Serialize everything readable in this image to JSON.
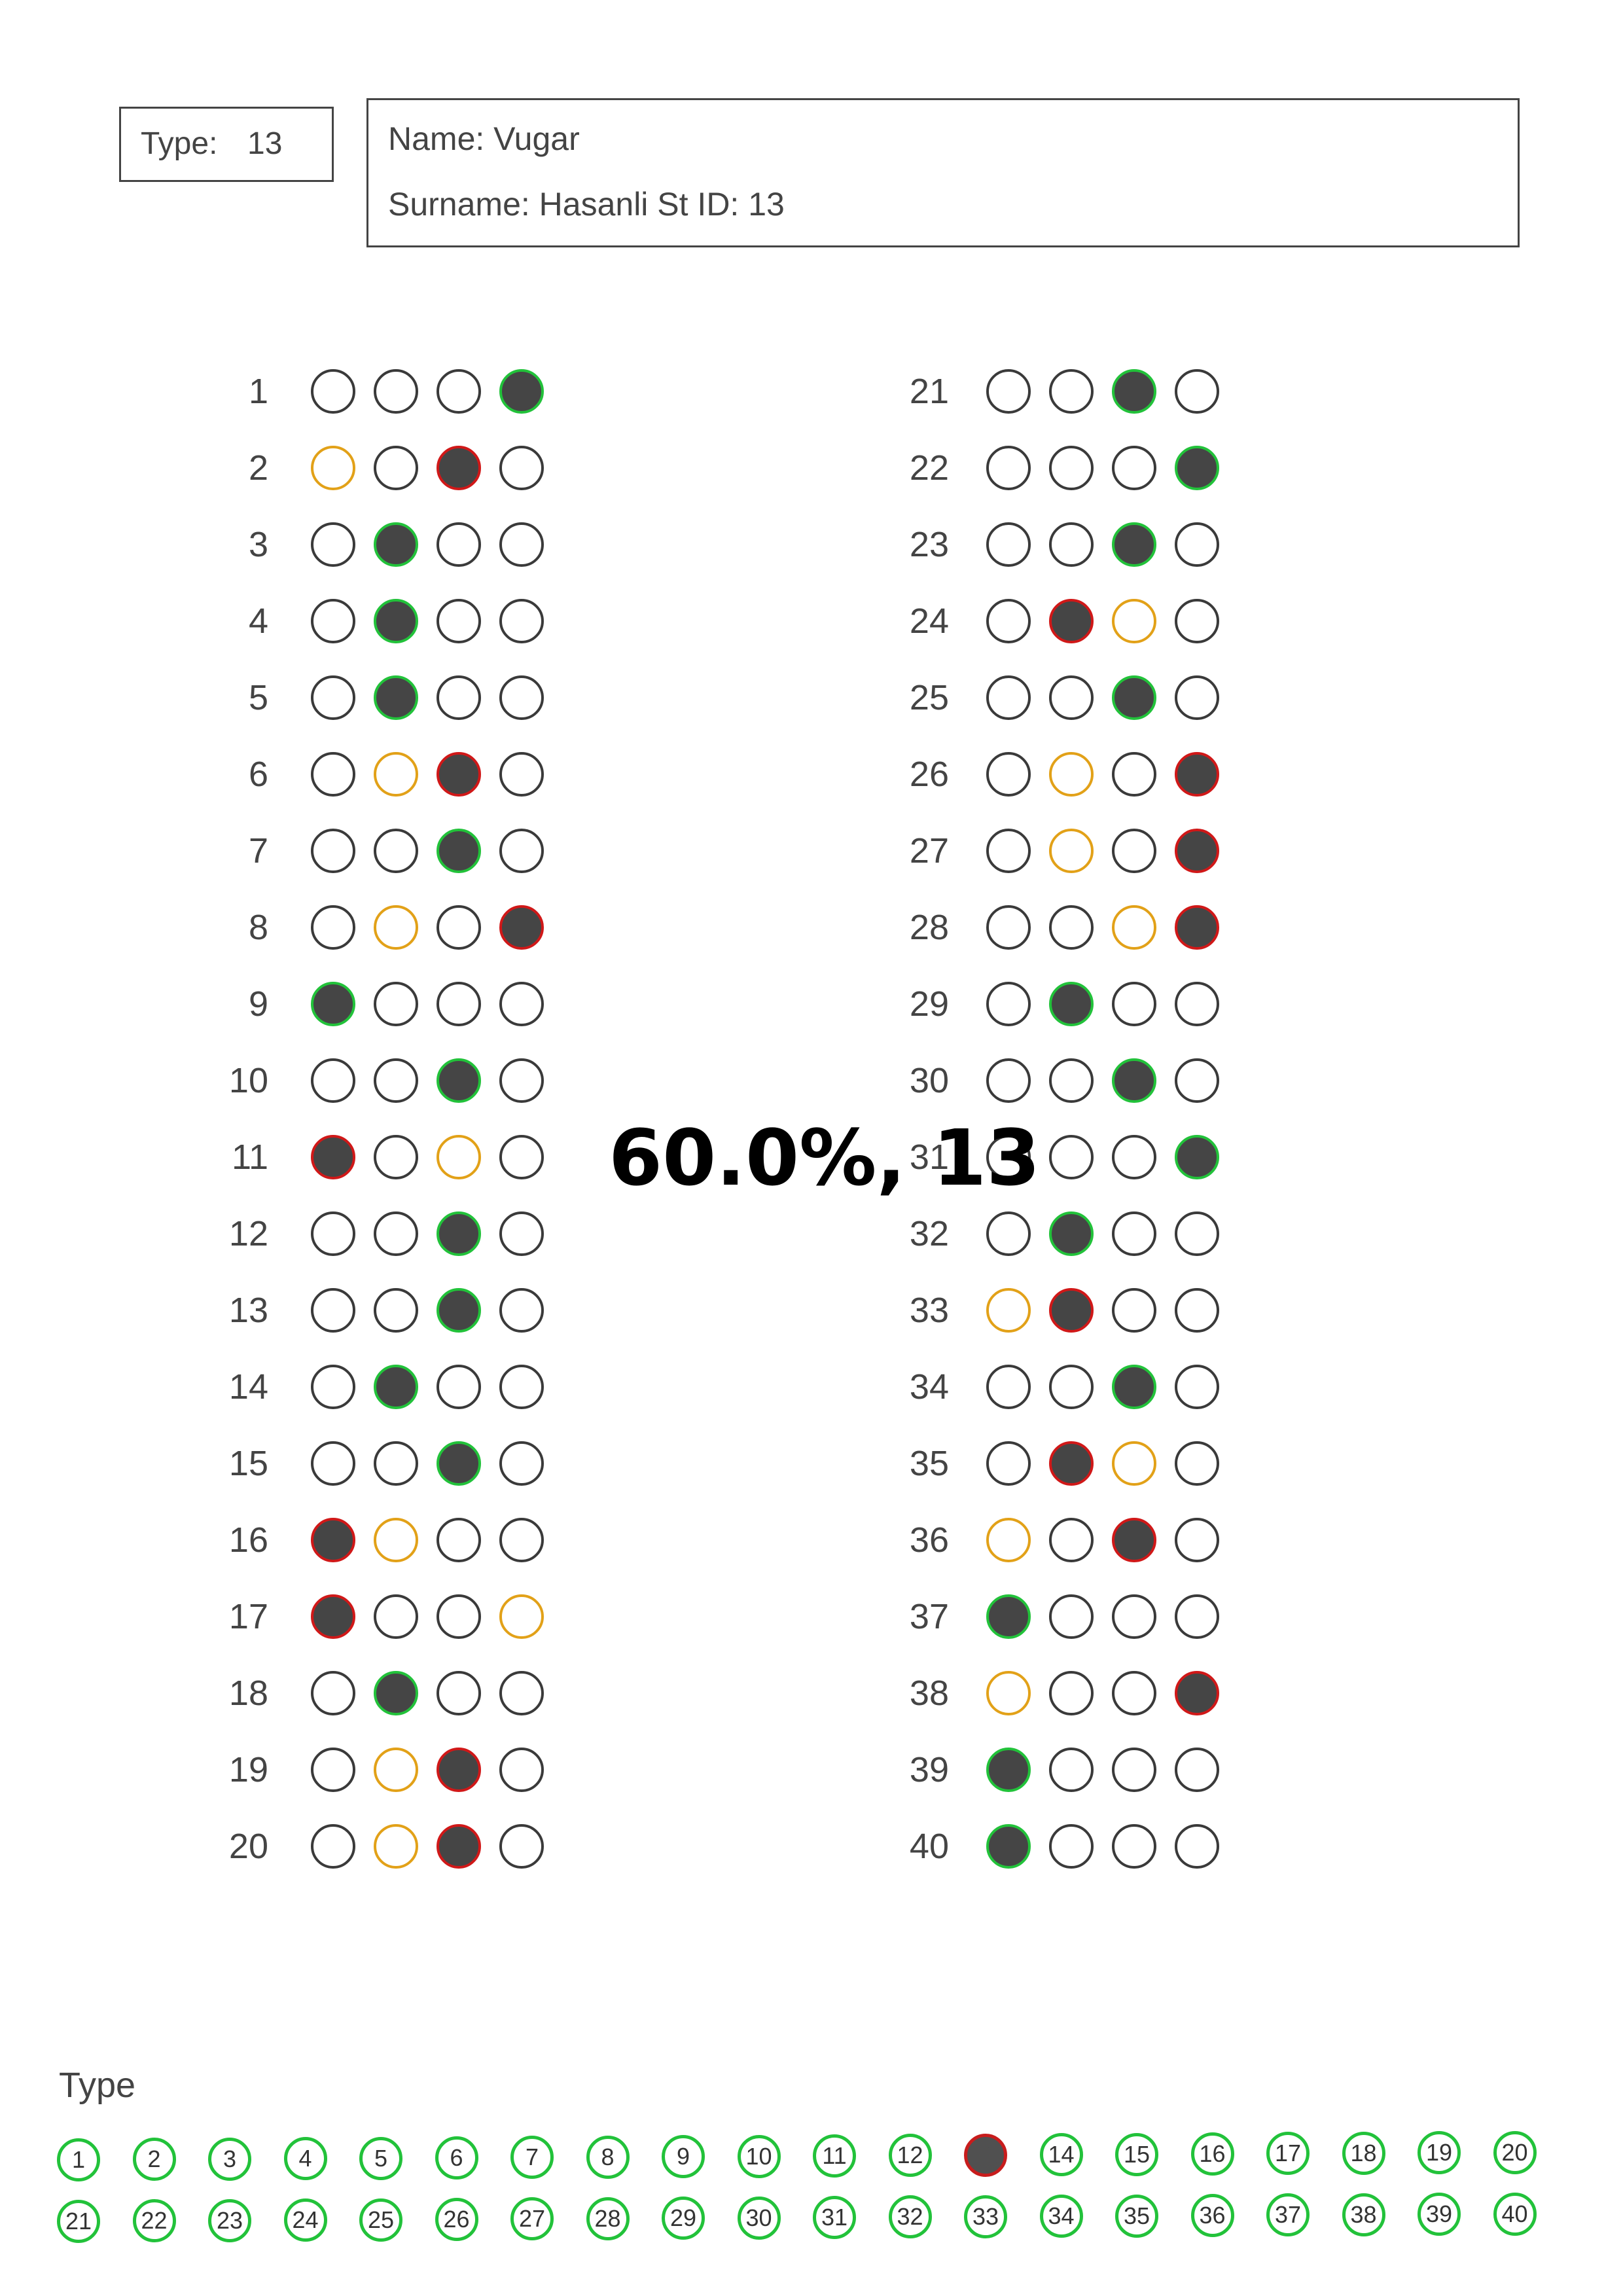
{
  "header": {
    "type_label": "Type:",
    "type_value": "13",
    "name_line": "Name: Vugar",
    "surname_line": "Surname: Hasanli  St ID: 13"
  },
  "score_text": "60.0%, 13",
  "questions": [
    {
      "num": "1",
      "bubbles": [
        "empty",
        "empty",
        "empty",
        "green-filled"
      ]
    },
    {
      "num": "2",
      "bubbles": [
        "orange",
        "empty",
        "red-filled",
        "empty"
      ]
    },
    {
      "num": "3",
      "bubbles": [
        "empty",
        "green-filled",
        "empty",
        "empty"
      ]
    },
    {
      "num": "4",
      "bubbles": [
        "empty",
        "green-filled",
        "empty",
        "empty"
      ]
    },
    {
      "num": "5",
      "bubbles": [
        "empty",
        "green-filled",
        "empty",
        "empty"
      ]
    },
    {
      "num": "6",
      "bubbles": [
        "empty",
        "orange",
        "red-filled",
        "empty"
      ]
    },
    {
      "num": "7",
      "bubbles": [
        "empty",
        "empty",
        "green-filled",
        "empty"
      ]
    },
    {
      "num": "8",
      "bubbles": [
        "empty",
        "orange",
        "empty",
        "red-filled"
      ]
    },
    {
      "num": "9",
      "bubbles": [
        "green-filled",
        "empty",
        "empty",
        "empty"
      ]
    },
    {
      "num": "10",
      "bubbles": [
        "empty",
        "empty",
        "green-filled",
        "empty"
      ]
    },
    {
      "num": "11",
      "bubbles": [
        "red-filled",
        "empty",
        "orange",
        "empty"
      ]
    },
    {
      "num": "12",
      "bubbles": [
        "empty",
        "empty",
        "green-filled",
        "empty"
      ]
    },
    {
      "num": "13",
      "bubbles": [
        "empty",
        "empty",
        "green-filled",
        "empty"
      ]
    },
    {
      "num": "14",
      "bubbles": [
        "empty",
        "green-filled",
        "empty",
        "empty"
      ]
    },
    {
      "num": "15",
      "bubbles": [
        "empty",
        "empty",
        "green-filled",
        "empty"
      ]
    },
    {
      "num": "16",
      "bubbles": [
        "red-filled",
        "orange",
        "empty",
        "empty"
      ]
    },
    {
      "num": "17",
      "bubbles": [
        "red-filled",
        "empty",
        "empty",
        "orange"
      ]
    },
    {
      "num": "18",
      "bubbles": [
        "empty",
        "green-filled",
        "empty",
        "empty"
      ]
    },
    {
      "num": "19",
      "bubbles": [
        "empty",
        "orange",
        "red-filled",
        "empty"
      ]
    },
    {
      "num": "20",
      "bubbles": [
        "empty",
        "orange",
        "red-filled",
        "empty"
      ]
    },
    {
      "num": "21",
      "bubbles": [
        "empty",
        "empty",
        "green-filled",
        "empty"
      ]
    },
    {
      "num": "22",
      "bubbles": [
        "empty",
        "empty",
        "empty",
        "green-filled"
      ]
    },
    {
      "num": "23",
      "bubbles": [
        "empty",
        "empty",
        "green-filled",
        "empty"
      ]
    },
    {
      "num": "24",
      "bubbles": [
        "empty",
        "red-filled",
        "orange",
        "empty"
      ]
    },
    {
      "num": "25",
      "bubbles": [
        "empty",
        "empty",
        "green-filled",
        "empty"
      ]
    },
    {
      "num": "26",
      "bubbles": [
        "empty",
        "orange",
        "empty",
        "red-filled"
      ]
    },
    {
      "num": "27",
      "bubbles": [
        "empty",
        "orange",
        "empty",
        "red-filled"
      ]
    },
    {
      "num": "28",
      "bubbles": [
        "empty",
        "empty",
        "orange",
        "red-filled"
      ]
    },
    {
      "num": "29",
      "bubbles": [
        "empty",
        "green-filled",
        "empty",
        "empty"
      ]
    },
    {
      "num": "30",
      "bubbles": [
        "empty",
        "empty",
        "green-filled",
        "empty"
      ]
    },
    {
      "num": "31",
      "bubbles": [
        "empty",
        "empty",
        "empty",
        "green-filled"
      ]
    },
    {
      "num": "32",
      "bubbles": [
        "empty",
        "green-filled",
        "empty",
        "empty"
      ]
    },
    {
      "num": "33",
      "bubbles": [
        "orange",
        "red-filled",
        "empty",
        "empty"
      ]
    },
    {
      "num": "34",
      "bubbles": [
        "empty",
        "empty",
        "green-filled",
        "empty"
      ]
    },
    {
      "num": "35",
      "bubbles": [
        "empty",
        "red-filled",
        "orange",
        "empty"
      ]
    },
    {
      "num": "36",
      "bubbles": [
        "orange",
        "empty",
        "red-filled",
        "empty"
      ]
    },
    {
      "num": "37",
      "bubbles": [
        "green-filled",
        "empty",
        "empty",
        "empty"
      ]
    },
    {
      "num": "38",
      "bubbles": [
        "orange",
        "empty",
        "empty",
        "red-filled"
      ]
    },
    {
      "num": "39",
      "bubbles": [
        "green-filled",
        "empty",
        "empty",
        "empty"
      ]
    },
    {
      "num": "40",
      "bubbles": [
        "green-filled",
        "empty",
        "empty",
        "empty"
      ]
    }
  ],
  "type_section": {
    "heading": "Type",
    "selected": "13",
    "options": [
      "1",
      "2",
      "3",
      "4",
      "5",
      "6",
      "7",
      "8",
      "9",
      "10",
      "11",
      "12",
      "13",
      "14",
      "15",
      "16",
      "17",
      "18",
      "19",
      "20",
      "21",
      "22",
      "23",
      "24",
      "25",
      "26",
      "27",
      "28",
      "29",
      "30",
      "31",
      "32",
      "33",
      "34",
      "35",
      "36",
      "37",
      "38",
      "39",
      "40"
    ]
  },
  "colors": {
    "correct": "#22c23a",
    "wrong": "#d01818",
    "missed_answer": "#e2a118",
    "fill": "#454545"
  }
}
